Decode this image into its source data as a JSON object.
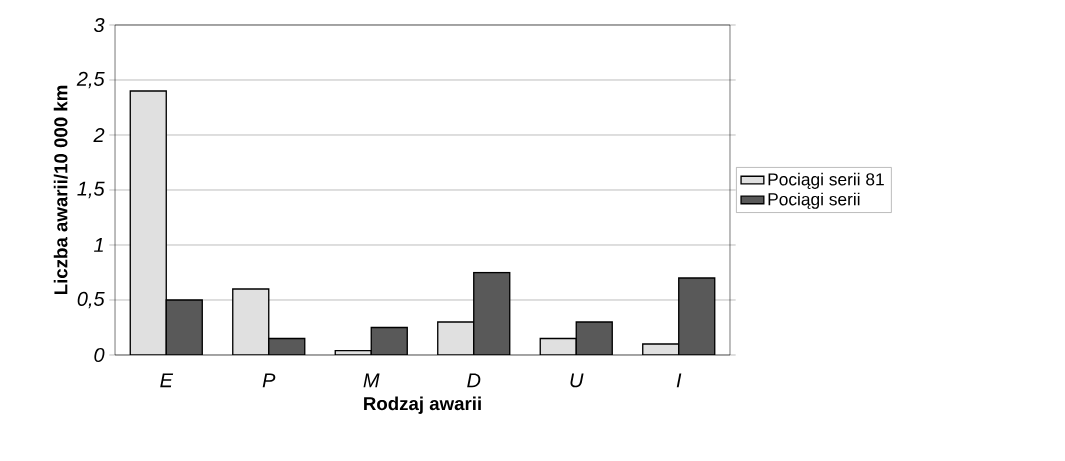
{
  "chart_data": {
    "type": "bar",
    "xlabel": "Rodzaj awarii",
    "ylabel": "Liczba awarii/10 000 km",
    "categories": [
      "E",
      "P",
      "M",
      "D",
      "U",
      "I"
    ],
    "series": [
      {
        "name": "Pociągi serii 81",
        "color": "#e0e0e0",
        "values": [
          2.4,
          0.6,
          0.04,
          0.3,
          0.15,
          0.1
        ]
      },
      {
        "name": "Pociągi serii",
        "color": "#595959",
        "values": [
          0.5,
          0.15,
          0.25,
          0.75,
          0.3,
          0.7
        ]
      }
    ],
    "ylim": [
      0,
      3
    ],
    "yticks": [
      0,
      {
        "value": 0.5,
        "label": "0,5"
      },
      1,
      {
        "value": 1.5,
        "label": "1,5"
      },
      2,
      {
        "value": 2.5,
        "label": "2,5"
      },
      3
    ],
    "grid": "y",
    "legend": "right"
  }
}
